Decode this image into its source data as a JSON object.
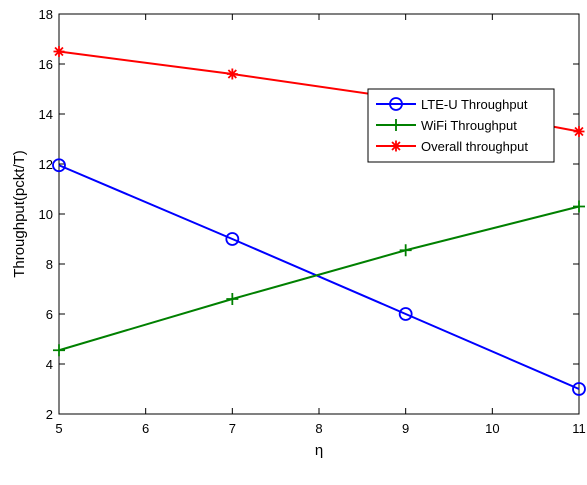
{
  "chart_data": {
    "type": "line",
    "title": "",
    "xlabel": "η",
    "ylabel": "Throughput(pckt/T)",
    "xlim": [
      5,
      11
    ],
    "ylim": [
      2,
      18
    ],
    "xticks": [
      5,
      6,
      7,
      8,
      9,
      10,
      11
    ],
    "yticks": [
      2,
      4,
      6,
      8,
      10,
      12,
      14,
      16,
      18
    ],
    "x": [
      5,
      7,
      9,
      11
    ],
    "legend_position": "top-right",
    "grid": false,
    "series": [
      {
        "name": "LTE-U Throughput",
        "color": "#0000ff",
        "marker": "circle",
        "values": [
          11.95,
          9.0,
          6.0,
          3.0
        ]
      },
      {
        "name": "WiFi Throughput",
        "color": "#008000",
        "marker": "plus",
        "values": [
          4.55,
          6.6,
          8.55,
          10.3
        ]
      },
      {
        "name": "Overall throughput",
        "color": "#ff0000",
        "marker": "asterisk",
        "values": [
          16.5,
          15.6,
          14.6,
          13.3
        ]
      }
    ]
  }
}
